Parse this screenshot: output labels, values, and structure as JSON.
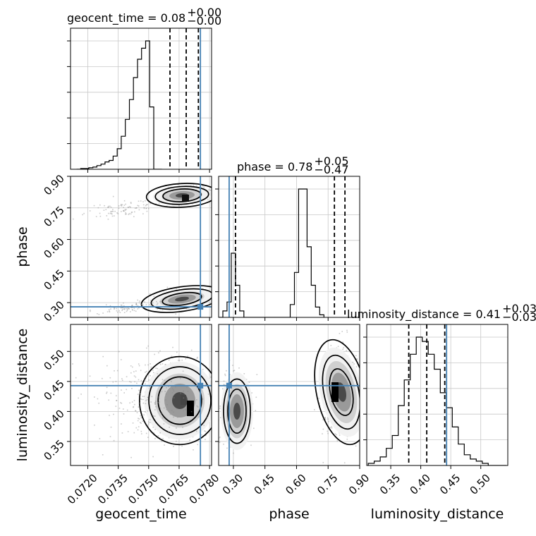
{
  "chart_data": {
    "type": "corner",
    "parameters": [
      {
        "name": "geocent_time",
        "range": [
          0.07115,
          0.0781
        ],
        "ticks": [
          "0.0720",
          "0.0735",
          "0.0750",
          "0.0765",
          "0.0780"
        ],
        "tick_values": [
          0.072,
          0.0735,
          0.075,
          0.0765,
          0.078
        ],
        "truth": 0.07755,
        "quantiles": [
          0.07605,
          0.07685,
          0.07745
        ]
      },
      {
        "name": "phase",
        "range": [
          0.23,
          0.9
        ],
        "ticks": [
          "0.30",
          "0.45",
          "0.60",
          "0.75",
          "0.90"
        ],
        "tick_values": [
          0.3,
          0.45,
          0.6,
          0.75,
          0.9
        ],
        "truth": 0.28,
        "quantiles": [
          0.31,
          0.78,
          0.83
        ]
      },
      {
        "name": "luminosity_distance",
        "range": [
          0.31,
          0.545
        ],
        "ticks": [
          "0.35",
          "0.40",
          "0.45",
          "0.50"
        ],
        "tick_values": [
          0.35,
          0.4,
          0.45,
          0.5
        ],
        "truth": 0.443,
        "quantiles": [
          0.38,
          0.41,
          0.44
        ]
      }
    ],
    "titles": [
      {
        "text": "geocent_time = 0.08",
        "plus": "+0.00",
        "minus": "−0.00"
      },
      {
        "text": "phase = 0.78",
        "plus": "+0.05",
        "minus": "−0.47"
      },
      {
        "text": "luminosity_distance = 0.41",
        "plus": "+0.03",
        "minus": "−0.03"
      }
    ],
    "histograms": {
      "geocent_time": {
        "bin_start": 0.07145,
        "bin_width": 0.0002,
        "counts": [
          0,
          1,
          1,
          2,
          3,
          5,
          7,
          10,
          12,
          18,
          28,
          45,
          68,
          95,
          125,
          150,
          165,
          175,
          85,
          0,
          0
        ]
      },
      "phase": {
        "bin_start": 0.23,
        "bin_width": 0.02,
        "counts": [
          0,
          5,
          12,
          50,
          25,
          5,
          0,
          0,
          0,
          0,
          0,
          0,
          0,
          0,
          0,
          0,
          0,
          10,
          35,
          100,
          100,
          55,
          25,
          8,
          2
        ]
      },
      "luminosity_distance": {
        "bin_start": 0.3125,
        "bin_width": 0.01,
        "counts": [
          1,
          2,
          4,
          8,
          14,
          28,
          40,
          52,
          60,
          58,
          52,
          45,
          34,
          27,
          18,
          10,
          5,
          3,
          2,
          1,
          0,
          0,
          0
        ]
      }
    },
    "grid": true,
    "series_color": "#4682b4"
  }
}
